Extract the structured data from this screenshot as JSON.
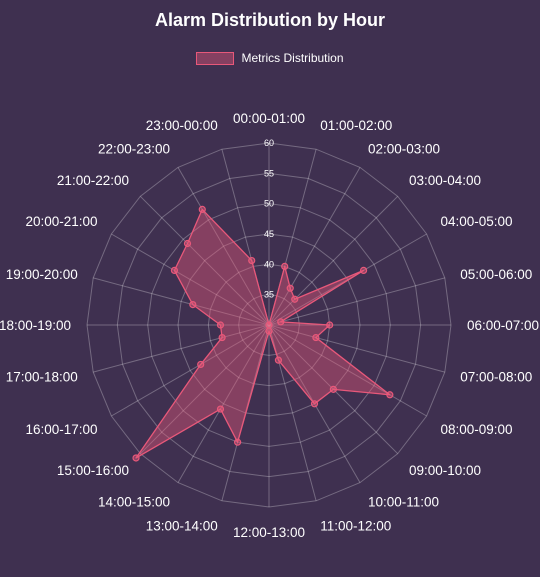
{
  "chart_data": {
    "type": "radar",
    "title": "Alarm Distribution by Hour",
    "legend": {
      "placement": "top-center"
    },
    "categories": [
      "00:00-01:00",
      "01:00-02:00",
      "02:00-03:00",
      "03:00-04:00",
      "04:00-05:00",
      "05:00-06:00",
      "06:00-07:00",
      "07:00-08:00",
      "08:00-09:00",
      "09:00-10:00",
      "10:00-11:00",
      "11:00-12:00",
      "12:00-13:00",
      "13:00-14:00",
      "14:00-15:00",
      "15:00-16:00",
      "16:00-17:00",
      "17:00-18:00",
      "18:00-19:00",
      "19:00-20:00",
      "20:00-21:00",
      "21:00-22:00",
      "22:00-23:00",
      "23:00-00:00"
    ],
    "series": [
      {
        "name": "Metrics Distribution",
        "values": [
          30,
          40,
          37,
          36,
          48,
          32,
          40,
          38,
          53,
          45,
          45,
          36,
          31,
          50,
          46,
          61,
          43,
          38,
          38,
          43,
          48,
          49,
          52,
          41
        ]
      }
    ],
    "rlim": [
      30,
      60
    ],
    "ticks": [
      35,
      40,
      45,
      50,
      55,
      60
    ],
    "grid": true,
    "colors": {
      "background": "#3f3050",
      "series_line": "#e8587a",
      "series_fill": "rgba(232, 88, 122, 0.42)",
      "grid": "rgba(255, 255, 255, 0.28)",
      "text": "#ffffff"
    }
  }
}
